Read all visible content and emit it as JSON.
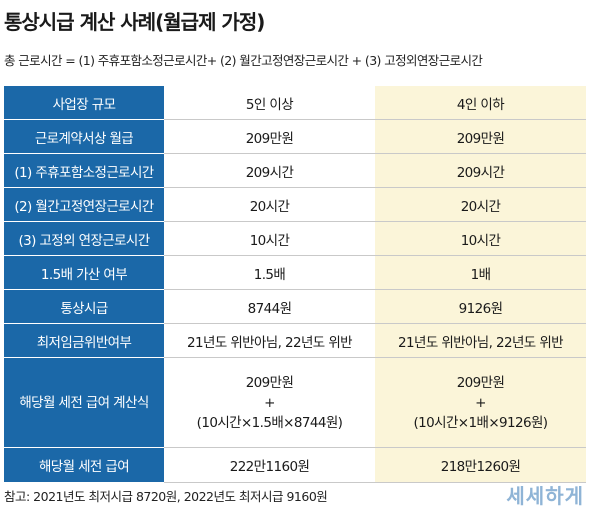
{
  "title": "통상시급 계산 사례(월급제 가정)",
  "formula": "총 근로시간 = (1) 주휴포함소정근로시간+ (2) 월간고정연장근로시간 + (3) 고정외연장근로시간",
  "table": {
    "header": {
      "label": "사업장 규모",
      "col_a": "5인 이상",
      "col_b": "4인 이하"
    },
    "rows": [
      {
        "label": "근로계약서상 월급",
        "a": "209만원",
        "b": "209만원"
      },
      {
        "label": "(1) 주휴포함소정근로시간",
        "a": "209시간",
        "b": "209시간"
      },
      {
        "label": "(2) 월간고정연장근로시간",
        "a": "20시간",
        "b": "20시간"
      },
      {
        "label": "(3) 고정외 연장근로시간",
        "a": "10시간",
        "b": "10시간"
      },
      {
        "label": "1.5배 가산 여부",
        "a": "1.5배",
        "b": "1배"
      },
      {
        "label": "통상시급",
        "a": "8744원",
        "b": "9126원"
      },
      {
        "label": "최저임금위반여부",
        "a": "21년도 위반아님, 22년도 위반",
        "b": "21년도 위반아님, 22년도 위반"
      }
    ],
    "calc": {
      "label": "해당월 세전 급여 계산식",
      "a": {
        "line1": "209만원",
        "line2": "+",
        "line3": "(10시간×1.5배×8744원)"
      },
      "b": {
        "line1": "209만원",
        "line2": "+",
        "line3": "(10시간×1배×9126원)"
      }
    },
    "total": {
      "label": "해당월 세전 급여",
      "a": "222만1160원",
      "b": "218만1260원"
    }
  },
  "note": "참고: 2021년도 최저시급 8720원, 2022년도 최저시급 9160원",
  "logo": "세세하게",
  "colors": {
    "header_blue": "#1b68a8",
    "highlight_yellow": "#fbf5d9",
    "logo": "#8fb4d6"
  }
}
